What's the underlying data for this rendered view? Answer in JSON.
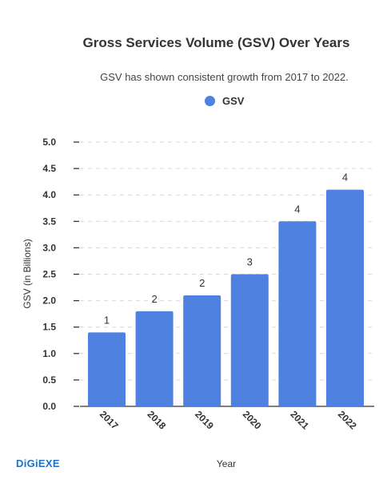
{
  "brand": {
    "logo_text": "DiGiEXE",
    "color": "#1a73c8"
  },
  "chart_data": {
    "type": "bar",
    "title": "Gross Services Volume (GSV) Over Years",
    "subtitle": "GSV has shown consistent growth from 2017 to 2022.",
    "xlabel": "Year",
    "ylabel": "GSV (in Billions)",
    "categories": [
      "2017",
      "2018",
      "2019",
      "2020",
      "2021",
      "2022"
    ],
    "series": [
      {
        "name": "GSV",
        "values": [
          1.4,
          1.8,
          2.1,
          2.5,
          3.5,
          4.1
        ],
        "data_labels": [
          "1",
          "2",
          "2",
          "3",
          "4",
          "4"
        ]
      }
    ],
    "ylim": [
      0,
      5
    ],
    "yticks": [
      "0.0",
      "0.5",
      "1.0",
      "1.5",
      "2.0",
      "2.5",
      "3.0",
      "3.5",
      "4.0",
      "4.5",
      "5.0"
    ],
    "grid": true,
    "legend_position": "top",
    "colors": {
      "bar": "#4f81e0",
      "grid": "#d9d9d9",
      "axis": "#333333",
      "text": "#333333"
    }
  }
}
